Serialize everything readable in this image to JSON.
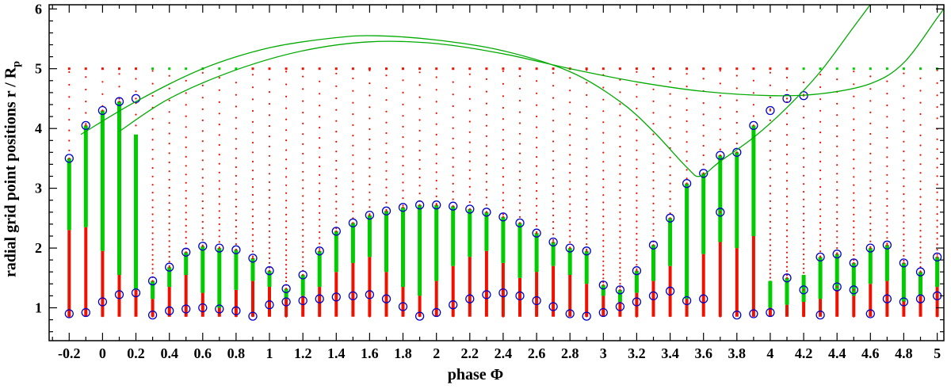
{
  "figure": {
    "xlabel": "phase Φ",
    "ylabel_main": "radial grid point positions   r / R",
    "ylabel_sub": "p"
  },
  "chart_data": {
    "type": "scatter",
    "title": "",
    "xlabel": "phase Φ",
    "ylabel": "radial grid point positions  r / R_p",
    "xlim": [
      -0.32,
      5.04
    ],
    "ylim": [
      0.45,
      6.07
    ],
    "grid": false,
    "legend": "none",
    "x_tick_values": [
      -0.2,
      0,
      0.2,
      0.4,
      0.6,
      0.8,
      1,
      1.2,
      1.4,
      1.6,
      1.8,
      2,
      2.2,
      2.4,
      2.6,
      2.8,
      3,
      3.2,
      3.4,
      3.6,
      3.8,
      4,
      4.2,
      4.4,
      4.6,
      4.8,
      5
    ],
    "x_tick_labels": [
      "-0.2",
      "0",
      "0.2",
      "0.4",
      "0.6",
      "0.8",
      "1",
      "1.2",
      "1.4",
      "1.6",
      "1.8",
      "2",
      "2.2",
      "2.4",
      "2.6",
      "2.8",
      "3",
      "3.2",
      "3.4",
      "3.6",
      "3.8",
      "4",
      "4.2",
      "4.4",
      "4.6",
      "4.8",
      "5"
    ],
    "y_tick_values": [
      1,
      2,
      3,
      4,
      5,
      6
    ],
    "y_tick_labels": [
      "1",
      "2",
      "3",
      "4",
      "5",
      "6"
    ],
    "colors": {
      "red_points": "#ee1100",
      "green_points": "#00cc00",
      "curve_green": "#00aa00",
      "circle_blue": "#0000cc",
      "frame": "#000000"
    },
    "radial_grid": {
      "r_min": 0.85,
      "r_max": 5.0,
      "ratio": 1.045
    },
    "top_row_r": 5.0,
    "top_row_green_ranges": [
      [
        0.3,
        0.85
      ],
      [
        4.2,
        5.0
      ]
    ],
    "columns": [
      {
        "p": -0.2,
        "g": [
          2.3,
          3.5
        ],
        "c": [
          3.5,
          0.9
        ]
      },
      {
        "p": -0.1,
        "g": [
          2.35,
          4.05
        ],
        "c": [
          4.05,
          0.92
        ]
      },
      {
        "p": 0.0,
        "g": [
          1.95,
          4.3
        ],
        "c": [
          4.3,
          1.1
        ]
      },
      {
        "p": 0.1,
        "g": [
          1.55,
          4.45
        ],
        "c": [
          4.45,
          1.22
        ]
      },
      {
        "p": 0.2,
        "g": [
          1.3,
          3.9
        ],
        "c": [
          4.5,
          1.25
        ]
      },
      {
        "p": 0.3,
        "g": [
          1.15,
          1.45
        ],
        "c": [
          1.45,
          0.88
        ]
      },
      {
        "p": 0.4,
        "g": [
          1.35,
          1.68
        ],
        "c": [
          1.68,
          0.95
        ]
      },
      {
        "p": 0.5,
        "g": [
          1.55,
          1.93
        ],
        "c": [
          1.93,
          0.98
        ]
      },
      {
        "p": 0.6,
        "g": [
          1.25,
          2.03
        ],
        "c": [
          2.03,
          1.0
        ]
      },
      {
        "p": 0.7,
        "g": [
          1.0,
          2.0
        ],
        "c": [
          2.0,
          0.98
        ]
      },
      {
        "p": 0.8,
        "g": [
          1.3,
          1.97
        ],
        "c": [
          1.97,
          0.95
        ]
      },
      {
        "p": 0.9,
        "g": [
          1.45,
          1.83
        ],
        "c": [
          1.83,
          0.86
        ]
      },
      {
        "p": 1.0,
        "g": [
          1.35,
          1.62
        ],
        "c": [
          1.62,
          1.05
        ]
      },
      {
        "p": 1.1,
        "g": [
          1.15,
          1.32
        ],
        "c": [
          1.32,
          1.1
        ]
      },
      {
        "p": 1.2,
        "g": [
          1.2,
          1.55
        ],
        "c": [
          1.55,
          1.12
        ]
      },
      {
        "p": 1.3,
        "g": [
          1.35,
          1.95
        ],
        "c": [
          1.95,
          1.15
        ]
      },
      {
        "p": 1.4,
        "g": [
          1.6,
          2.28
        ],
        "c": [
          2.28,
          1.18
        ]
      },
      {
        "p": 1.5,
        "g": [
          1.75,
          2.42
        ],
        "c": [
          2.42,
          1.2
        ]
      },
      {
        "p": 1.6,
        "g": [
          1.85,
          2.55
        ],
        "c": [
          2.55,
          1.22
        ]
      },
      {
        "p": 1.7,
        "g": [
          1.6,
          2.62
        ],
        "c": [
          2.62,
          1.15
        ]
      },
      {
        "p": 1.8,
        "g": [
          1.35,
          2.68
        ],
        "c": [
          2.68,
          1.02
        ]
      },
      {
        "p": 1.9,
        "g": [
          1.2,
          2.72
        ],
        "c": [
          2.72,
          0.86
        ]
      },
      {
        "p": 2.0,
        "g": [
          1.45,
          2.72
        ],
        "c": [
          2.72,
          0.92
        ]
      },
      {
        "p": 2.1,
        "g": [
          1.7,
          2.7
        ],
        "c": [
          2.7,
          1.05
        ]
      },
      {
        "p": 2.2,
        "g": [
          1.85,
          2.65
        ],
        "c": [
          2.65,
          1.15
        ]
      },
      {
        "p": 2.3,
        "g": [
          1.95,
          2.6
        ],
        "c": [
          2.6,
          1.22
        ]
      },
      {
        "p": 2.4,
        "g": [
          1.75,
          2.52
        ],
        "c": [
          2.52,
          1.25
        ]
      },
      {
        "p": 2.5,
        "g": [
          1.5,
          2.42
        ],
        "c": [
          2.42,
          1.2
        ]
      },
      {
        "p": 2.6,
        "g": [
          1.6,
          2.25
        ],
        "c": [
          2.25,
          1.12
        ]
      },
      {
        "p": 2.7,
        "g": [
          1.7,
          2.1
        ],
        "c": [
          2.1,
          1.02
        ]
      },
      {
        "p": 2.8,
        "g": [
          1.55,
          2.0
        ],
        "c": [
          2.0,
          0.9
        ]
      },
      {
        "p": 2.9,
        "g": [
          1.4,
          1.95
        ],
        "c": [
          1.95,
          0.86
        ]
      },
      {
        "p": 3.0,
        "g": [
          1.2,
          1.38
        ],
        "c": [
          1.38,
          0.92
        ]
      },
      {
        "p": 3.1,
        "g": [
          1.1,
          1.3
        ],
        "c": [
          1.3,
          1.02
        ]
      },
      {
        "p": 3.2,
        "g": [
          1.25,
          1.62
        ],
        "c": [
          1.62,
          1.1
        ]
      },
      {
        "p": 3.3,
        "g": [
          1.45,
          2.05
        ],
        "c": [
          2.05,
          1.2
        ]
      },
      {
        "p": 3.4,
        "g": [
          1.7,
          2.5
        ],
        "c": [
          2.5,
          1.28
        ]
      },
      {
        "p": 3.5,
        "g": [
          1.15,
          3.08
        ],
        "c": [
          3.08,
          1.12
        ]
      },
      {
        "p": 3.6,
        "g": [
          1.9,
          3.25
        ],
        "c": [
          3.25,
          1.15
        ]
      },
      {
        "p": 3.7,
        "g": [
          2.1,
          3.55
        ],
        "c": [
          3.55,
          2.6
        ]
      },
      {
        "p": 3.8,
        "g": [
          2.0,
          3.6
        ],
        "c": [
          3.6,
          0.88
        ]
      },
      {
        "p": 3.9,
        "g": [
          2.2,
          4.05
        ],
        "c": [
          4.05,
          0.9
        ]
      },
      {
        "p": 4.0,
        "g": [
          1.0,
          1.45
        ],
        "c": [
          4.3,
          0.92
        ]
      },
      {
        "p": 4.1,
        "g": [
          1.05,
          1.5
        ],
        "c": [
          4.5,
          1.5
        ]
      },
      {
        "p": 4.2,
        "g": [
          1.1,
          1.55
        ],
        "c": [
          4.55,
          1.3
        ]
      },
      {
        "p": 4.3,
        "g": [
          1.15,
          1.85
        ],
        "c": [
          1.85,
          0.88
        ]
      },
      {
        "p": 4.4,
        "g": [
          1.3,
          1.9
        ],
        "c": [
          1.9,
          1.35
        ]
      },
      {
        "p": 4.5,
        "g": [
          1.2,
          1.75
        ],
        "c": [
          1.75,
          1.3
        ]
      },
      {
        "p": 4.6,
        "g": [
          1.4,
          2.0
        ],
        "c": [
          2.0,
          0.9
        ]
      },
      {
        "p": 4.7,
        "g": [
          1.45,
          2.05
        ],
        "c": [
          2.05,
          1.15
        ]
      },
      {
        "p": 4.8,
        "g": [
          1.1,
          1.75
        ],
        "c": [
          1.75,
          1.1
        ]
      },
      {
        "p": 4.9,
        "g": [
          1.2,
          1.6
        ],
        "c": [
          1.6,
          1.15
        ]
      },
      {
        "p": 5.0,
        "g": [
          1.35,
          1.85
        ],
        "c": [
          1.85,
          1.2
        ]
      }
    ],
    "curves": [
      {
        "name": "envelope-curve-1",
        "points": [
          [
            -0.13,
            3.9
          ],
          [
            0.2,
            4.45
          ],
          [
            0.6,
            5.0
          ],
          [
            1.0,
            5.35
          ],
          [
            1.4,
            5.52
          ],
          [
            1.65,
            5.55
          ],
          [
            2.0,
            5.48
          ],
          [
            2.4,
            5.3
          ],
          [
            2.8,
            4.95
          ],
          [
            3.1,
            4.45
          ],
          [
            3.3,
            3.95
          ],
          [
            3.5,
            3.35
          ],
          [
            3.58,
            3.2
          ],
          [
            3.7,
            3.45
          ],
          [
            3.9,
            3.85
          ],
          [
            4.1,
            4.35
          ],
          [
            4.3,
            4.95
          ],
          [
            4.5,
            5.7
          ],
          [
            4.62,
            6.15
          ]
        ]
      },
      {
        "name": "envelope-curve-2",
        "points": [
          [
            0.1,
            3.95
          ],
          [
            0.4,
            4.5
          ],
          [
            0.8,
            4.98
          ],
          [
            1.2,
            5.3
          ],
          [
            1.6,
            5.45
          ],
          [
            2.0,
            5.42
          ],
          [
            2.4,
            5.25
          ],
          [
            2.8,
            5.0
          ],
          [
            3.2,
            4.78
          ],
          [
            3.6,
            4.62
          ],
          [
            4.0,
            4.55
          ],
          [
            4.3,
            4.58
          ],
          [
            4.6,
            4.75
          ],
          [
            4.8,
            5.1
          ],
          [
            5.0,
            5.85
          ],
          [
            5.05,
            6.05
          ]
        ]
      }
    ]
  }
}
